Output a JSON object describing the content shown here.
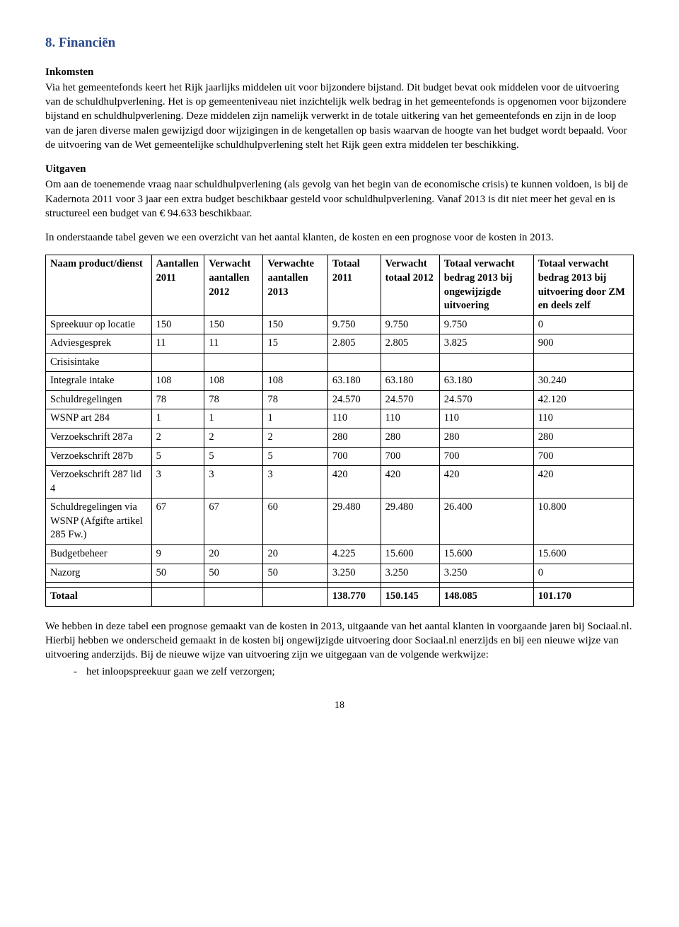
{
  "heading": "8.  Financiën",
  "paragraphs": {
    "inkomsten_label": "Inkomsten",
    "inkomsten_body": "Via het gemeentefonds keert het Rijk jaarlijks middelen uit voor bijzondere bijstand. Dit budget bevat ook middelen voor de uitvoering van de schuldhulpverlening. Het is op gemeenteniveau niet inzichtelijk welk bedrag in het gemeentefonds is opgenomen voor bijzondere bijstand en schuldhulpverlening. Deze middelen zijn namelijk verwerkt in de totale uitkering van het gemeentefonds en zijn in de loop van de jaren diverse malen gewijzigd door wijzigingen in de kengetallen op basis waarvan de hoogte van het budget wordt bepaald. Voor de uitvoering van de Wet gemeentelijke schuldhulpverlening stelt het Rijk geen extra middelen ter beschikking.",
    "uitgaven_label": "Uitgaven",
    "uitgaven_body": "Om aan de toenemende vraag naar schuldhulpverlening (als gevolg van het begin van de economische crisis) te kunnen voldoen, is bij de Kadernota 2011 voor 3 jaar een extra budget beschikbaar gesteld voor schuldhulpverlening. Vanaf 2013 is dit niet meer het geval en is structureel een budget van € 94.633 beschikbaar.",
    "table_intro": "In onderstaande tabel geven we een overzicht van het aantal klanten, de kosten en een prognose voor de kosten in 2013.",
    "closing_body": "We hebben in deze tabel een prognose gemaakt van de kosten in 2013, uitgaande van het aantal klanten in voorgaande jaren bij Sociaal.nl. Hierbij hebben we onderscheid gemaakt in de kosten bij ongewijzigde uitvoering door Sociaal.nl enerzijds en bij een nieuwe wijze van uitvoering anderzijds. Bij de nieuwe wijze van uitvoering zijn we uitgegaan van de volgende werkwijze:",
    "closing_bullet": "het inloopspreekuur gaan we zelf verzorgen;"
  },
  "table": {
    "columns": [
      "Naam product/dienst",
      "Aantallen 2011",
      "Verwacht aantallen 2012",
      "Verwachte aantallen 2013",
      "Totaal 2011",
      "Verwacht totaal 2012",
      "Totaal verwacht bedrag 2013 bij ongewijzigde uitvoering",
      "Totaal verwacht bedrag 2013 bij uitvoering door ZM en deels zelf"
    ],
    "col_widths": [
      "18%",
      "9%",
      "10%",
      "11%",
      "9%",
      "10%",
      "16%",
      "17%"
    ],
    "rows": [
      [
        "Spreekuur op locatie",
        "150",
        "150",
        "150",
        "9.750",
        "9.750",
        "9.750",
        "0"
      ],
      [
        "Adviesgesprek",
        "11",
        "11",
        "15",
        "2.805",
        "2.805",
        "3.825",
        "900"
      ],
      [
        "Crisisintake",
        "",
        "",
        "",
        "",
        "",
        "",
        ""
      ],
      [
        "Integrale intake",
        "108",
        "108",
        "108",
        "63.180",
        "63.180",
        "63.180",
        "30.240"
      ],
      [
        "Schuldregelingen",
        "78",
        "78",
        "78",
        "24.570",
        "24.570",
        "24.570",
        "42.120"
      ],
      [
        "WSNP art 284",
        "1",
        "1",
        "1",
        "110",
        "110",
        "110",
        "110"
      ],
      [
        "Verzoekschrift 287a",
        "2",
        "2",
        "2",
        "280",
        "280",
        "280",
        "280"
      ],
      [
        "Verzoekschrift 287b",
        "5",
        "5",
        "5",
        "700",
        "700",
        "700",
        "700"
      ],
      [
        "Verzoekschrift 287 lid 4",
        "3",
        "3",
        "3",
        "420",
        "420",
        "420",
        "420"
      ],
      [
        "Schuldregelingen via WSNP (Afgifte artikel 285 Fw.)",
        "67",
        "67",
        "60",
        "29.480",
        "29.480",
        "26.400",
        "10.800"
      ],
      [
        "Budgetbeheer",
        "9",
        "20",
        "20",
        "4.225",
        "15.600",
        "15.600",
        "15.600"
      ],
      [
        "Nazorg",
        "50",
        "50",
        "50",
        "3.250",
        "3.250",
        "3.250",
        "0"
      ],
      [
        "",
        "",
        "",
        "",
        "",
        "",
        "",
        ""
      ]
    ],
    "total_row": [
      "Totaal",
      "",
      "",
      "",
      "138.770",
      "150.145",
      "148.085",
      "101.170"
    ]
  },
  "page_number": "18"
}
